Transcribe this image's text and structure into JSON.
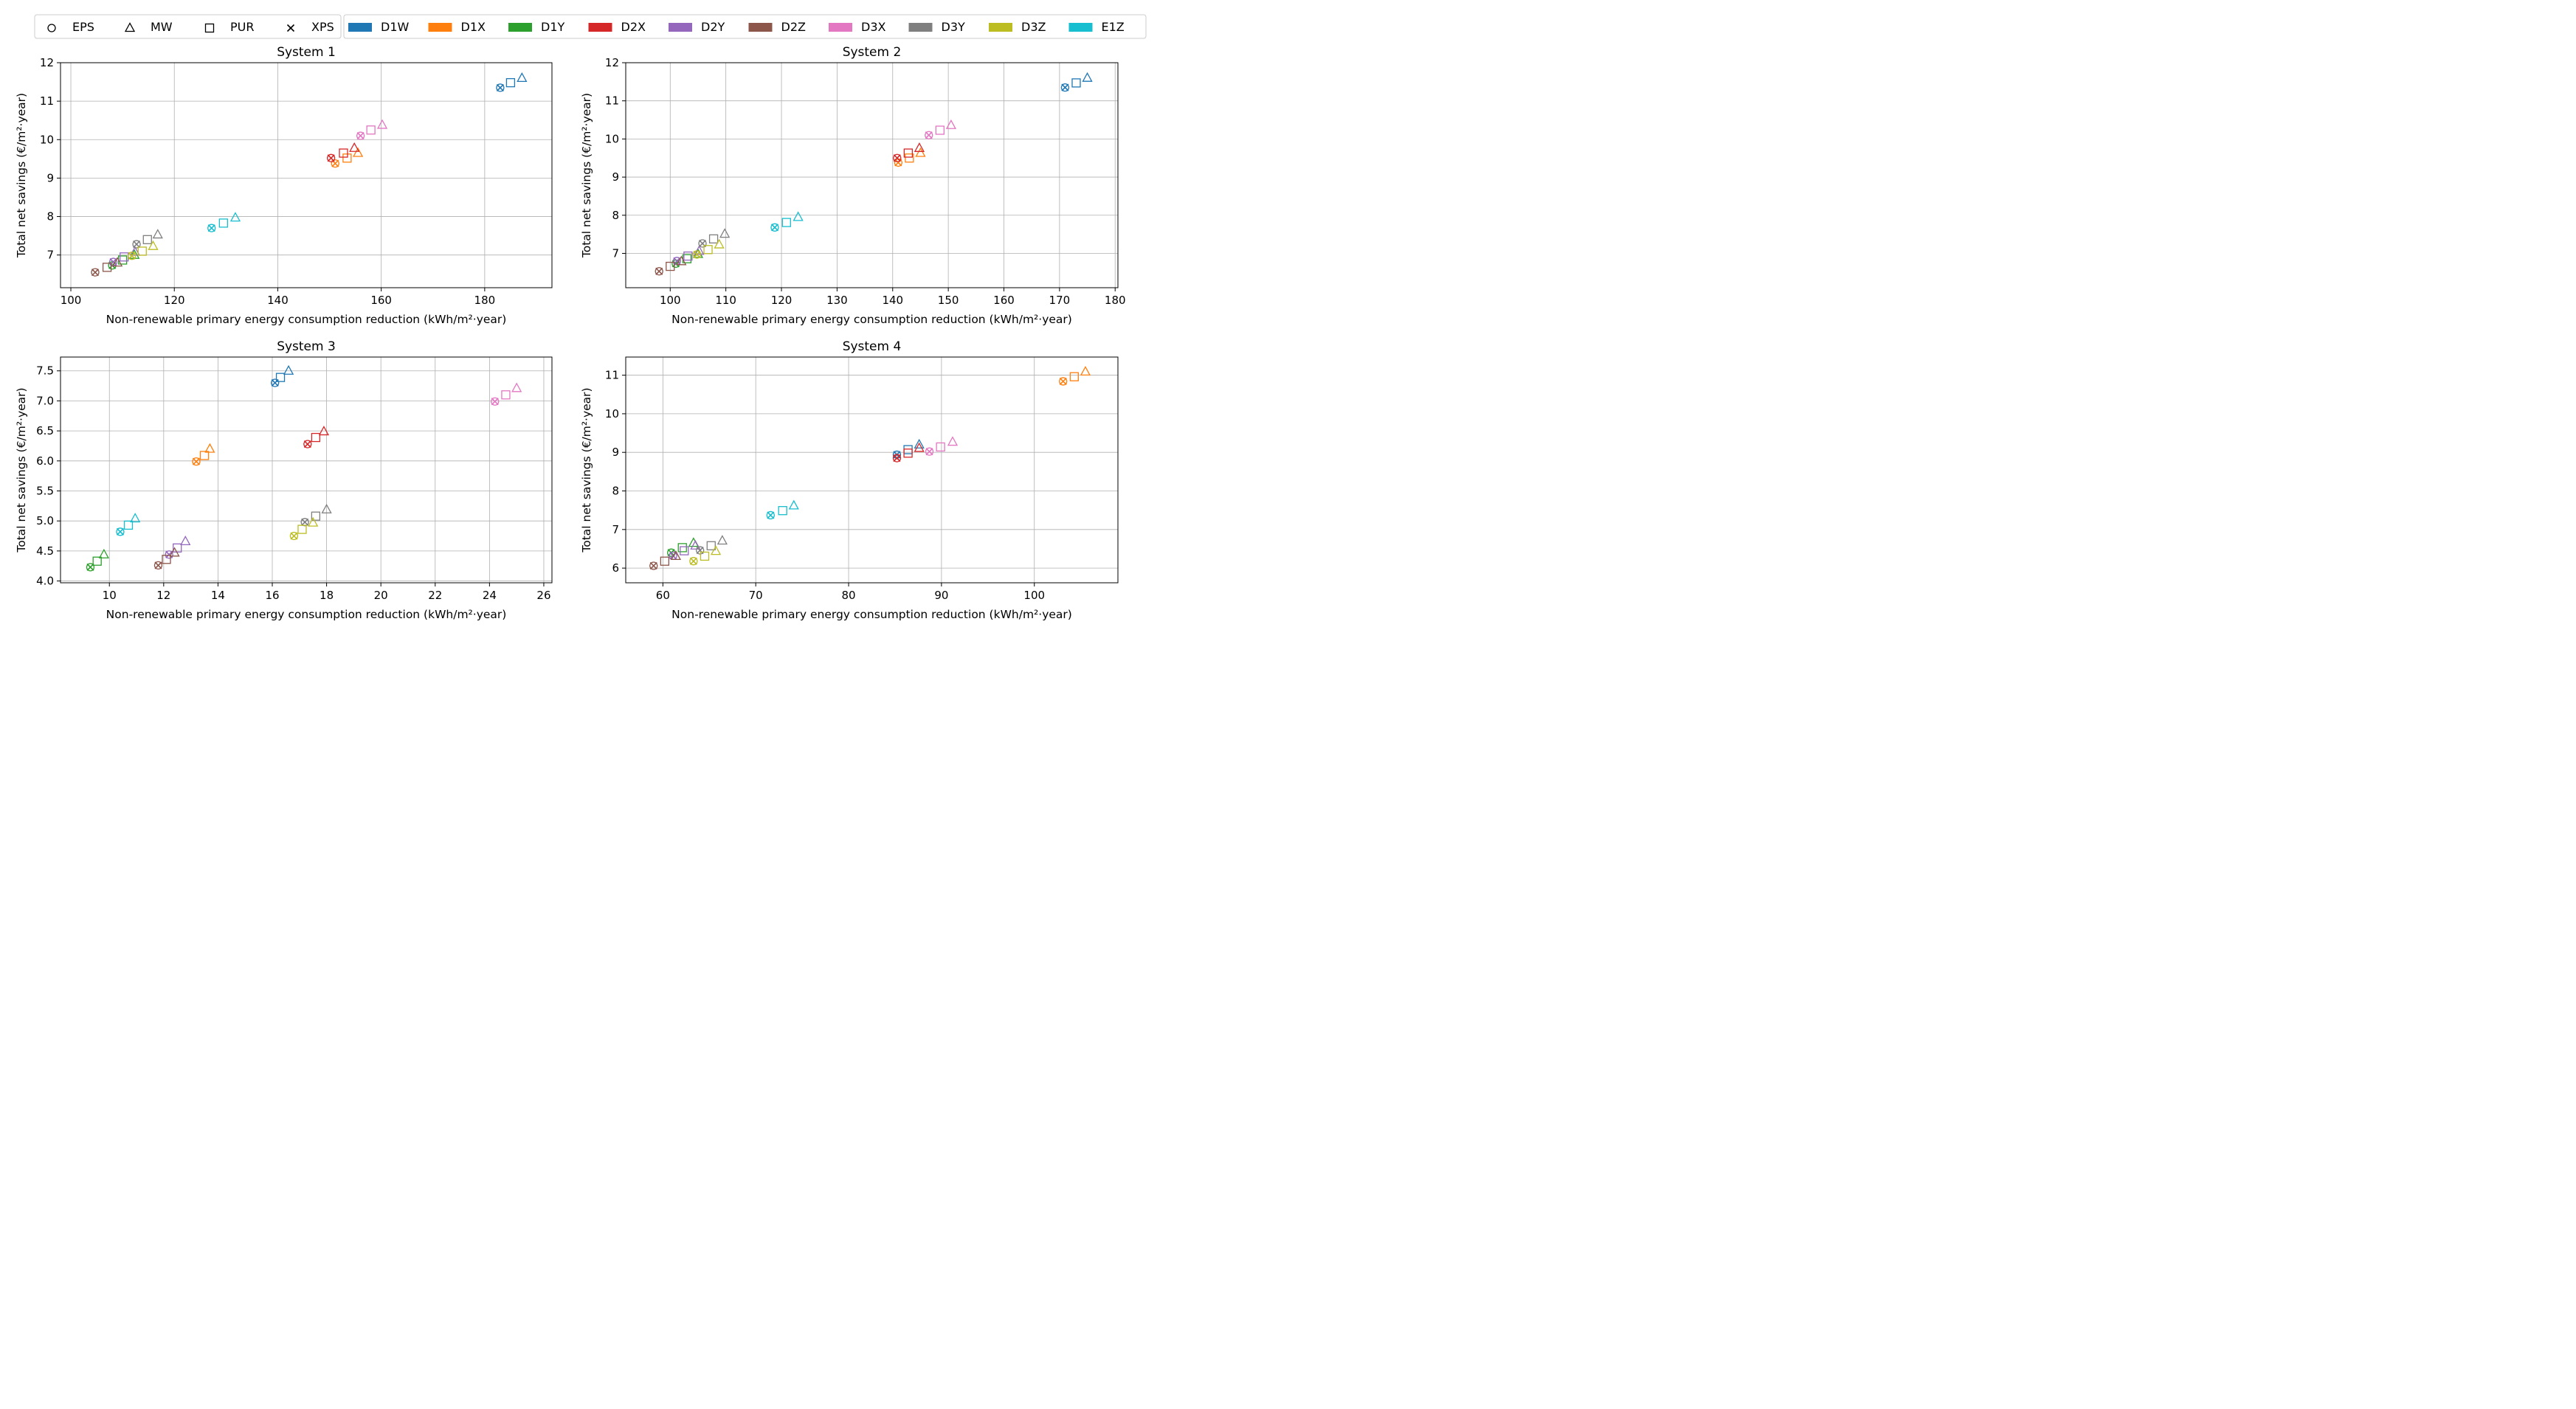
{
  "legend": {
    "materials": [
      {
        "label": "EPS",
        "marker": "circle"
      },
      {
        "label": "MW",
        "marker": "triangle"
      },
      {
        "label": "PUR",
        "marker": "square"
      },
      {
        "label": "XPS",
        "marker": "x"
      }
    ],
    "cases": [
      {
        "label": "D1W",
        "color": "#1f77b4"
      },
      {
        "label": "D1X",
        "color": "#ff7f0e"
      },
      {
        "label": "D1Y",
        "color": "#2ca02c"
      },
      {
        "label": "D2X",
        "color": "#d62728"
      },
      {
        "label": "D2Y",
        "color": "#9467bd"
      },
      {
        "label": "D2Z",
        "color": "#8c564b"
      },
      {
        "label": "D3X",
        "color": "#e377c2"
      },
      {
        "label": "D3Y",
        "color": "#7f7f7f"
      },
      {
        "label": "D3Z",
        "color": "#bcbd22"
      },
      {
        "label": "E1Z",
        "color": "#17becf"
      }
    ]
  },
  "chart_data": [
    {
      "type": "scatter",
      "title": "System 1",
      "xlabel": "Non-renewable primary energy consumption reduction (kWh/m²·year)",
      "ylabel": "Total net savings (€/m²·year)",
      "xlim": [
        98,
        193
      ],
      "ylim": [
        6.15,
        12
      ],
      "xticks": [
        100,
        120,
        140,
        160,
        180
      ],
      "yticks": [
        7,
        8,
        9,
        10,
        11,
        12
      ],
      "grid": true,
      "series": [
        {
          "name": "D1W",
          "points": {
            "EPS": [
              183.0,
              11.35
            ],
            "XPS": [
              183.0,
              11.35
            ],
            "PUR": [
              185.0,
              11.48
            ],
            "MW": [
              187.2,
              11.6
            ]
          }
        },
        {
          "name": "D1X",
          "points": {
            "EPS": [
              151.1,
              9.38
            ],
            "XPS": [
              151.1,
              9.38
            ],
            "PUR": [
              153.4,
              9.52
            ],
            "MW": [
              155.5,
              9.65
            ]
          }
        },
        {
          "name": "D1Y",
          "points": {
            "EPS": [
              108.0,
              6.73
            ],
            "XPS": [
              108.0,
              6.73
            ],
            "PUR": [
              110.0,
              6.87
            ],
            "MW": [
              112.3,
              7.0
            ]
          }
        },
        {
          "name": "D2X",
          "points": {
            "EPS": [
              150.3,
              9.52
            ],
            "XPS": [
              150.3,
              9.52
            ],
            "PUR": [
              152.7,
              9.65
            ],
            "MW": [
              154.8,
              9.78
            ]
          }
        },
        {
          "name": "D2Y",
          "points": {
            "EPS": [
              108.2,
              6.82
            ],
            "XPS": [
              108.2,
              6.82
            ],
            "PUR": [
              110.3,
              6.95
            ],
            "MW": [
              112.4,
              7.08
            ]
          }
        },
        {
          "name": "D2Z",
          "points": {
            "EPS": [
              104.7,
              6.55
            ],
            "XPS": [
              104.7,
              6.55
            ],
            "PUR": [
              107.0,
              6.68
            ],
            "MW": [
              109.0,
              6.8
            ]
          }
        },
        {
          "name": "D3X",
          "points": {
            "EPS": [
              156.0,
              10.1
            ],
            "XPS": [
              156.0,
              10.1
            ],
            "PUR": [
              158.0,
              10.25
            ],
            "MW": [
              160.2,
              10.38
            ]
          }
        },
        {
          "name": "D3Y",
          "points": {
            "EPS": [
              112.7,
              7.28
            ],
            "XPS": [
              112.7,
              7.28
            ],
            "PUR": [
              114.8,
              7.4
            ],
            "MW": [
              116.8,
              7.53
            ]
          }
        },
        {
          "name": "D3Z",
          "points": {
            "EPS": [
              111.8,
              6.98
            ],
            "XPS": [
              111.8,
              6.98
            ],
            "PUR": [
              113.8,
              7.1
            ],
            "MW": [
              115.9,
              7.23
            ]
          }
        },
        {
          "name": "E1Z",
          "points": {
            "EPS": [
              127.2,
              7.7
            ],
            "XPS": [
              127.2,
              7.7
            ],
            "PUR": [
              129.5,
              7.83
            ],
            "MW": [
              131.8,
              7.97
            ]
          }
        }
      ]
    },
    {
      "type": "scatter",
      "title": "System 2",
      "xlabel": "Non-renewable primary energy consumption reduction (kWh/m²·year)",
      "ylabel": "Total net savings (€/m²·year)",
      "xlim": [
        92,
        180.5
      ],
      "ylim": [
        6.1,
        12
      ],
      "xticks": [
        100,
        110,
        120,
        130,
        140,
        150,
        160,
        170,
        180
      ],
      "yticks": [
        7,
        8,
        9,
        10,
        11,
        12
      ],
      "grid": true,
      "series": [
        {
          "name": "D1W",
          "points": {
            "EPS": [
              171.0,
              11.35
            ],
            "XPS": [
              171.0,
              11.35
            ],
            "PUR": [
              173.0,
              11.47
            ],
            "MW": [
              175.0,
              11.6
            ]
          }
        },
        {
          "name": "D1X",
          "points": {
            "EPS": [
              141.0,
              9.38
            ],
            "XPS": [
              141.0,
              9.38
            ],
            "PUR": [
              143.0,
              9.5
            ],
            "MW": [
              145.0,
              9.63
            ]
          }
        },
        {
          "name": "D1Y",
          "points": {
            "EPS": [
              101.0,
              6.73
            ],
            "XPS": [
              101.0,
              6.73
            ],
            "PUR": [
              103.0,
              6.86
            ],
            "MW": [
              105.0,
              6.98
            ]
          }
        },
        {
          "name": "D2X",
          "points": {
            "EPS": [
              140.8,
              9.5
            ],
            "XPS": [
              140.8,
              9.5
            ],
            "PUR": [
              142.8,
              9.63
            ],
            "MW": [
              144.8,
              9.76
            ]
          }
        },
        {
          "name": "D2Y",
          "points": {
            "EPS": [
              101.2,
              6.8
            ],
            "XPS": [
              101.2,
              6.8
            ],
            "PUR": [
              103.2,
              6.93
            ],
            "MW": [
              105.2,
              7.06
            ]
          }
        },
        {
          "name": "D2Z",
          "points": {
            "EPS": [
              98.0,
              6.53
            ],
            "XPS": [
              98.0,
              6.53
            ],
            "PUR": [
              100.0,
              6.66
            ],
            "MW": [
              102.0,
              6.79
            ]
          }
        },
        {
          "name": "D3X",
          "points": {
            "EPS": [
              146.5,
              10.1
            ],
            "XPS": [
              146.5,
              10.1
            ],
            "PUR": [
              148.5,
              10.23
            ],
            "MW": [
              150.5,
              10.36
            ]
          }
        },
        {
          "name": "D3Y",
          "points": {
            "EPS": [
              105.8,
              7.26
            ],
            "XPS": [
              105.8,
              7.26
            ],
            "PUR": [
              107.8,
              7.38
            ],
            "MW": [
              109.8,
              7.51
            ]
          }
        },
        {
          "name": "D3Z",
          "points": {
            "EPS": [
              104.8,
              6.97
            ],
            "XPS": [
              104.8,
              6.97
            ],
            "PUR": [
              106.8,
              7.1
            ],
            "MW": [
              108.8,
              7.23
            ]
          }
        },
        {
          "name": "E1Z",
          "points": {
            "EPS": [
              118.8,
              7.68
            ],
            "XPS": [
              118.8,
              7.68
            ],
            "PUR": [
              120.9,
              7.81
            ],
            "MW": [
              123.0,
              7.95
            ]
          }
        }
      ]
    },
    {
      "type": "scatter",
      "title": "System 3",
      "xlabel": "Non-renewable primary energy consumption reduction (kWh/m²·year)",
      "ylabel": "Total net savings (€/m²·year)",
      "xlim": [
        8.2,
        26.3
      ],
      "ylim": [
        3.97,
        7.73
      ],
      "xticks": [
        10,
        12,
        14,
        16,
        18,
        20,
        22,
        24,
        26
      ],
      "yticks": [
        4.0,
        4.5,
        5.0,
        5.5,
        6.0,
        6.5,
        7.0,
        7.5
      ],
      "grid": true,
      "series": [
        {
          "name": "D1W",
          "points": {
            "EPS": [
              16.1,
              7.3
            ],
            "XPS": [
              16.1,
              7.3
            ],
            "PUR": [
              16.3,
              7.39
            ],
            "MW": [
              16.6,
              7.5
            ]
          }
        },
        {
          "name": "D1X",
          "points": {
            "EPS": [
              13.2,
              5.99
            ],
            "XPS": [
              13.2,
              5.99
            ],
            "PUR": [
              13.5,
              6.09
            ],
            "MW": [
              13.7,
              6.2
            ]
          }
        },
        {
          "name": "D1Y",
          "points": {
            "EPS": [
              9.3,
              4.23
            ],
            "XPS": [
              9.3,
              4.23
            ],
            "PUR": [
              9.55,
              4.33
            ],
            "MW": [
              9.8,
              4.44
            ]
          }
        },
        {
          "name": "D2X",
          "points": {
            "EPS": [
              17.3,
              6.28
            ],
            "XPS": [
              17.3,
              6.28
            ],
            "PUR": [
              17.6,
              6.39
            ],
            "MW": [
              17.9,
              6.49
            ]
          }
        },
        {
          "name": "D2Y",
          "points": {
            "EPS": [
              12.2,
              4.44
            ],
            "XPS": [
              12.2,
              4.44
            ],
            "PUR": [
              12.5,
              4.55
            ],
            "MW": [
              12.8,
              4.66
            ]
          }
        },
        {
          "name": "D2Z",
          "points": {
            "EPS": [
              11.8,
              4.26
            ],
            "XPS": [
              11.8,
              4.26
            ],
            "PUR": [
              12.1,
              4.36
            ],
            "MW": [
              12.4,
              4.47
            ]
          }
        },
        {
          "name": "D3X",
          "points": {
            "EPS": [
              24.2,
              6.99
            ],
            "XPS": [
              24.2,
              6.99
            ],
            "PUR": [
              24.6,
              7.1
            ],
            "MW": [
              25.0,
              7.21
            ]
          }
        },
        {
          "name": "D3Y",
          "points": {
            "EPS": [
              17.2,
              4.98
            ],
            "XPS": [
              17.2,
              4.98
            ],
            "PUR": [
              17.6,
              5.08
            ],
            "MW": [
              18.0,
              5.19
            ]
          }
        },
        {
          "name": "D3Z",
          "points": {
            "EPS": [
              16.8,
              4.75
            ],
            "XPS": [
              16.8,
              4.75
            ],
            "PUR": [
              17.1,
              4.86
            ],
            "MW": [
              17.5,
              4.97
            ]
          }
        },
        {
          "name": "E1Z",
          "points": {
            "EPS": [
              10.4,
              4.82
            ],
            "XPS": [
              10.4,
              4.82
            ],
            "PUR": [
              10.7,
              4.93
            ],
            "MW": [
              10.95,
              5.04
            ]
          }
        }
      ]
    },
    {
      "type": "scatter",
      "title": "System 4",
      "xlabel": "Non-renewable primary energy consumption reduction (kWh/m²·year)",
      "ylabel": "Total net savings (€/m²·year)",
      "xlim": [
        56,
        109
      ],
      "ylim": [
        5.62,
        11.47
      ],
      "xticks": [
        60,
        70,
        80,
        90,
        100
      ],
      "yticks": [
        6,
        7,
        8,
        9,
        10,
        11
      ],
      "grid": true,
      "series": [
        {
          "name": "D1W",
          "points": {
            "EPS": [
              85.2,
              8.94
            ],
            "XPS": [
              85.2,
              8.94
            ],
            "PUR": [
              86.4,
              9.07
            ],
            "MW": [
              87.6,
              9.2
            ]
          }
        },
        {
          "name": "D1X",
          "points": {
            "EPS": [
              103.1,
              10.84
            ],
            "XPS": [
              103.1,
              10.84
            ],
            "PUR": [
              104.3,
              10.96
            ],
            "MW": [
              105.5,
              11.09
            ]
          }
        },
        {
          "name": "D1Y",
          "points": {
            "EPS": [
              60.9,
              6.4
            ],
            "XPS": [
              60.9,
              6.4
            ],
            "PUR": [
              62.1,
              6.53
            ],
            "MW": [
              63.3,
              6.65
            ]
          }
        },
        {
          "name": "D2X",
          "points": {
            "EPS": [
              85.2,
              8.85
            ],
            "XPS": [
              85.2,
              8.85
            ],
            "PUR": [
              86.4,
              8.98
            ],
            "MW": [
              87.6,
              9.11
            ]
          }
        },
        {
          "name": "D2Y",
          "points": {
            "EPS": [
              61.1,
              6.32
            ],
            "XPS": [
              61.1,
              6.32
            ],
            "PUR": [
              62.3,
              6.45
            ],
            "MW": [
              63.5,
              6.58
            ]
          }
        },
        {
          "name": "D2Z",
          "points": {
            "EPS": [
              59.0,
              6.06
            ],
            "XPS": [
              59.0,
              6.06
            ],
            "PUR": [
              60.2,
              6.18
            ],
            "MW": [
              61.4,
              6.31
            ]
          }
        },
        {
          "name": "D3X",
          "points": {
            "EPS": [
              88.7,
              9.02
            ],
            "XPS": [
              88.7,
              9.02
            ],
            "PUR": [
              89.9,
              9.14
            ],
            "MW": [
              91.2,
              9.27
            ]
          }
        },
        {
          "name": "D3Y",
          "points": {
            "EPS": [
              64.0,
              6.46
            ],
            "XPS": [
              64.0,
              6.46
            ],
            "PUR": [
              65.2,
              6.58
            ],
            "MW": [
              66.4,
              6.71
            ]
          }
        },
        {
          "name": "D3Z",
          "points": {
            "EPS": [
              63.3,
              6.18
            ],
            "XPS": [
              63.3,
              6.18
            ],
            "PUR": [
              64.5,
              6.31
            ],
            "MW": [
              65.7,
              6.44
            ]
          }
        },
        {
          "name": "E1Z",
          "points": {
            "EPS": [
              71.6,
              7.37
            ],
            "XPS": [
              71.6,
              7.37
            ],
            "PUR": [
              72.9,
              7.49
            ],
            "MW": [
              74.1,
              7.62
            ]
          }
        }
      ]
    }
  ]
}
